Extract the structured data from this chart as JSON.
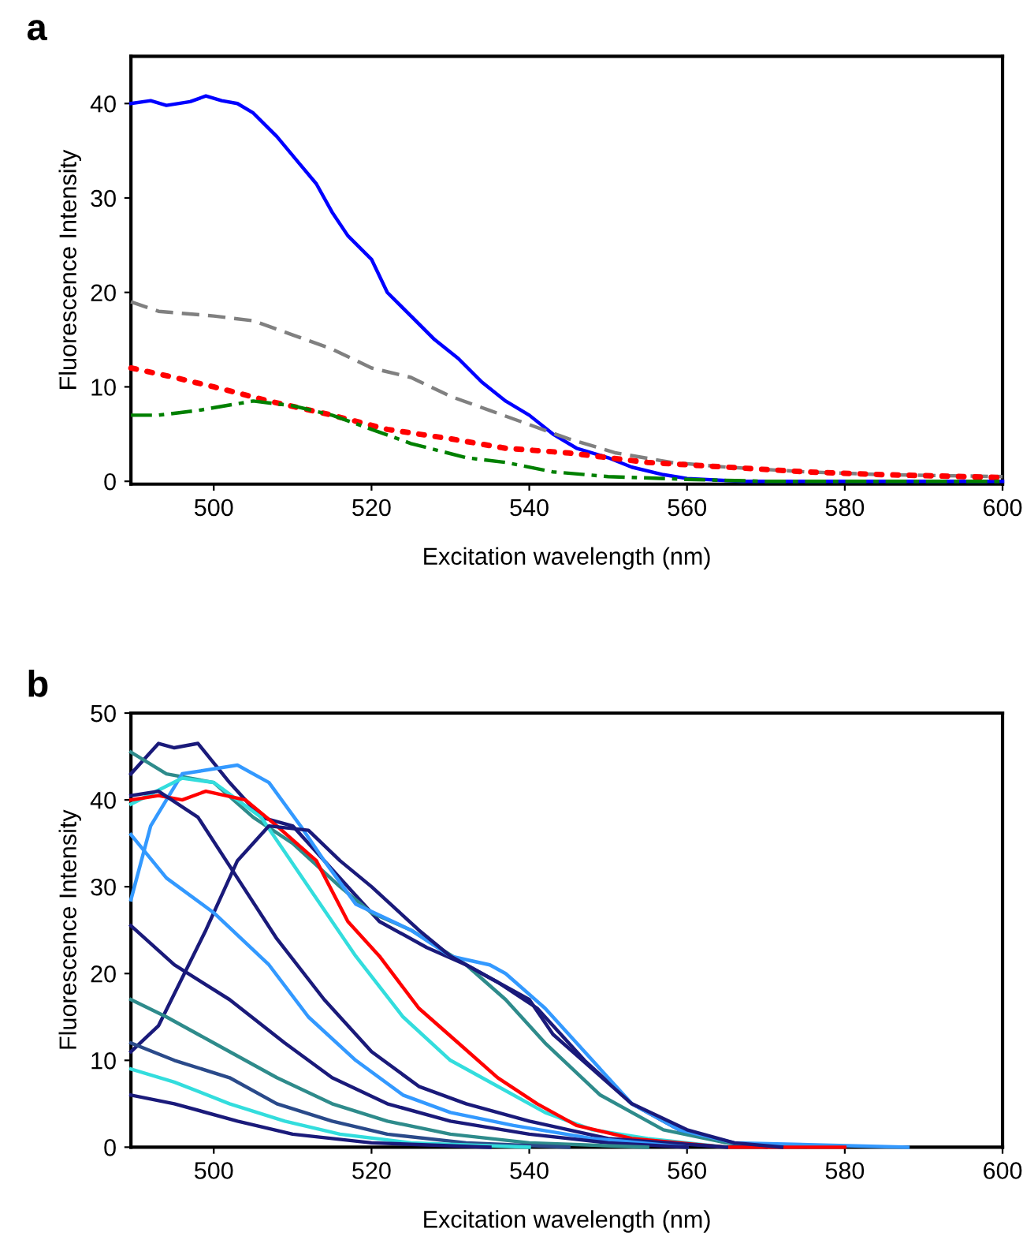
{
  "chart_data": [
    {
      "type": "line",
      "title": "a",
      "xlabel": "Excitation wavelength (nm)",
      "ylabel": "Fluorescence Intensity",
      "xlim": [
        489.5,
        600
      ],
      "xticks": [
        500,
        520,
        540,
        560,
        580,
        600
      ],
      "ylim": [
        -0.3,
        45
      ],
      "yticks": [
        0,
        10,
        20,
        30,
        40
      ],
      "grid": false,
      "legend": false,
      "series": [
        {
          "color": "#0000ff",
          "line_style": "solid",
          "x": [
            489.5,
            492,
            494,
            497,
            499,
            501,
            503,
            505,
            508,
            511,
            513,
            515,
            517,
            520,
            522,
            525,
            528,
            531,
            534,
            537,
            540,
            543,
            546,
            550,
            553,
            557,
            560,
            567,
            600
          ],
          "values": [
            40,
            40.3,
            39.8,
            40.2,
            40.8,
            40.3,
            40,
            39,
            36.5,
            33.5,
            31.5,
            28.5,
            26,
            23.5,
            20,
            17.5,
            15,
            13,
            10.5,
            8.5,
            7,
            5,
            3.5,
            2.5,
            1.5,
            0.7,
            0.3,
            0,
            0
          ]
        },
        {
          "color": "#808080",
          "line_style": "dashed",
          "x": [
            489.5,
            493,
            500,
            505,
            510,
            515,
            520,
            525,
            530,
            535,
            540,
            545,
            551,
            558,
            565,
            575,
            585,
            600
          ],
          "values": [
            19,
            18,
            17.5,
            17,
            15.5,
            14,
            12,
            11,
            9,
            7.5,
            6,
            4.5,
            3,
            2,
            1.5,
            1,
            0.7,
            0.5
          ]
        },
        {
          "color": "#ff0000",
          "line_style": "dotted",
          "x": [
            489.5,
            495,
            500,
            507,
            515,
            522,
            530,
            537,
            545,
            555,
            565,
            575,
            585,
            600
          ],
          "values": [
            12,
            11,
            10,
            8.5,
            7,
            5.5,
            4.5,
            3.5,
            3,
            2,
            1.5,
            1,
            0.7,
            0.4
          ]
        },
        {
          "color": "#008000",
          "line_style": "dashdot",
          "x": [
            489.5,
            493,
            498,
            505,
            510,
            515,
            520,
            525,
            532,
            537,
            543,
            550,
            560,
            570,
            600
          ],
          "values": [
            7,
            7,
            7.5,
            8.5,
            8,
            7,
            5.5,
            4,
            2.5,
            2,
            1,
            0.5,
            0.2,
            0,
            0
          ]
        }
      ]
    },
    {
      "type": "line",
      "title": "b",
      "xlabel": "Excitation wavelength (nm)",
      "ylabel": "Fluorescence Intensity",
      "xlim": [
        489.5,
        600
      ],
      "xticks": [
        500,
        520,
        540,
        560,
        580,
        600
      ],
      "ylim": [
        0,
        50
      ],
      "yticks": [
        0,
        10,
        20,
        30,
        40,
        50
      ],
      "grid": false,
      "legend": false,
      "series": [
        {
          "color": "#1a1a7a",
          "x": [
            489.5,
            493,
            495,
            498,
            502,
            506,
            510,
            517,
            521,
            527,
            532,
            536,
            541,
            547,
            553,
            559,
            565,
            570
          ],
          "values": [
            43,
            46.5,
            46,
            46.5,
            42,
            38,
            37,
            30,
            26,
            23,
            21,
            19,
            16,
            10,
            5,
            2,
            0.5,
            0
          ]
        },
        {
          "color": "#2e8b8b",
          "x": [
            489.5,
            494,
            500,
            505,
            510,
            516,
            520,
            525,
            532,
            537,
            542,
            549,
            557,
            565,
            575
          ],
          "values": [
            45.5,
            43,
            42,
            38,
            35,
            30,
            27,
            25,
            21,
            17,
            12,
            6,
            2,
            0.5,
            0
          ]
        },
        {
          "color": "#3399ff",
          "x": [
            489.5,
            492,
            496,
            503,
            507,
            511,
            514,
            518,
            525,
            530,
            535,
            537,
            542,
            548,
            553,
            559,
            566,
            588
          ],
          "values": [
            28.5,
            37,
            43,
            44,
            42,
            37,
            33,
            28,
            25,
            22,
            21,
            20,
            16,
            10,
            5,
            2,
            0.5,
            0
          ]
        },
        {
          "color": "#33dddd",
          "x": [
            489.5,
            496,
            500,
            506,
            512,
            518,
            524,
            530,
            536,
            542,
            548,
            555,
            565
          ],
          "values": [
            39.5,
            42.5,
            42,
            38,
            30,
            22,
            15,
            10,
            7,
            4,
            2,
            1,
            0
          ]
        },
        {
          "color": "#ff0000",
          "x": [
            489.5,
            493,
            496,
            499,
            504,
            508,
            513,
            517,
            521,
            526,
            531,
            536,
            541,
            546,
            553,
            565,
            580
          ],
          "values": [
            40,
            40.5,
            40,
            41,
            40,
            37,
            33,
            26,
            22,
            16,
            12,
            8,
            5,
            2.5,
            1,
            0,
            0
          ]
        },
        {
          "color": "#1a1a7a",
          "x": [
            489.5,
            493,
            498,
            503,
            508,
            514,
            520,
            526,
            532,
            540,
            550,
            565
          ],
          "values": [
            40.5,
            41,
            38,
            31,
            24,
            17,
            11,
            7,
            5,
            3,
            1,
            0
          ]
        },
        {
          "color": "#1a1a7a",
          "x": [
            489.5,
            493,
            499,
            503,
            507,
            512,
            516,
            520,
            526,
            530,
            534,
            540,
            543,
            548,
            553,
            560,
            566,
            572
          ],
          "values": [
            11,
            14,
            25,
            33,
            37,
            36.5,
            33,
            30,
            25,
            22,
            20,
            17,
            13,
            9,
            5,
            2,
            0.5,
            0
          ]
        },
        {
          "color": "#3399ff",
          "x": [
            489.5,
            494,
            500,
            507,
            512,
            518,
            524,
            530,
            538,
            548,
            560
          ],
          "values": [
            36,
            31,
            27,
            21,
            15,
            10,
            6,
            4,
            2.5,
            1,
            0
          ]
        },
        {
          "color": "#1a1a7a",
          "x": [
            489.5,
            495,
            502,
            509,
            515,
            522,
            530,
            540,
            550,
            560
          ],
          "values": [
            25.5,
            21,
            17,
            12,
            8,
            5,
            3,
            1.5,
            0.5,
            0
          ]
        },
        {
          "color": "#2e8b8b",
          "x": [
            489.5,
            494,
            500,
            508,
            515,
            522,
            530,
            540,
            555
          ],
          "values": [
            17,
            15,
            12,
            8,
            5,
            3,
            1.5,
            0.5,
            0
          ]
        },
        {
          "color": "#2a4a8a",
          "x": [
            489.5,
            495,
            502,
            508,
            515,
            522,
            532,
            545
          ],
          "values": [
            12,
            10,
            8,
            5,
            3,
            1.5,
            0.5,
            0
          ]
        },
        {
          "color": "#33dddd",
          "x": [
            489.5,
            495,
            502,
            509,
            516,
            525,
            540
          ],
          "values": [
            9,
            7.5,
            5,
            3,
            1.5,
            0.5,
            0
          ]
        },
        {
          "color": "#1a1a7a",
          "x": [
            489.5,
            495,
            503,
            510,
            520,
            535
          ],
          "values": [
            6,
            5,
            3,
            1.5,
            0.5,
            0
          ]
        }
      ]
    }
  ]
}
